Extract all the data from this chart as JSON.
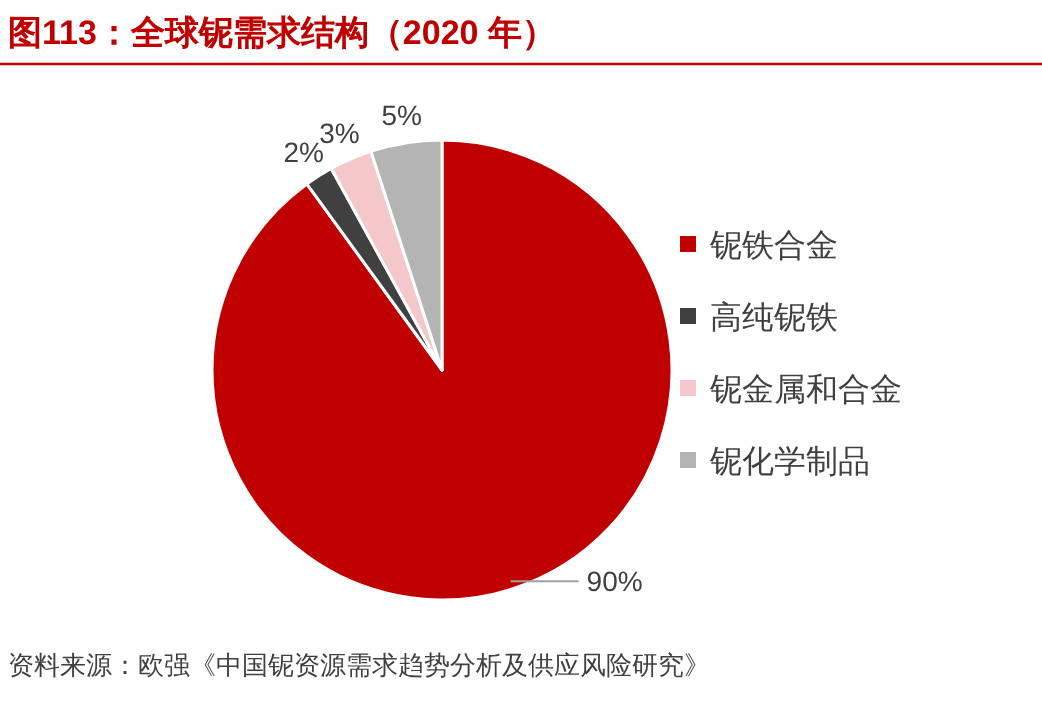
{
  "chart_data": {
    "type": "pie",
    "title": "图113：全球铌需求结构（2020 年）",
    "categories": [
      "铌铁合金",
      "高纯铌铁",
      "铌金属和合金",
      "铌化学制品"
    ],
    "values": [
      90,
      2,
      3,
      5
    ],
    "value_labels": [
      "90%",
      "2%",
      "3%",
      "5%"
    ],
    "colors": [
      "#c00000",
      "#404040",
      "#f4c7c9",
      "#b4b4b4"
    ],
    "legend": "right",
    "annotations": [
      "资料来源：欧强《中国铌资源需求趋势分析及供应风险研究》"
    ]
  }
}
